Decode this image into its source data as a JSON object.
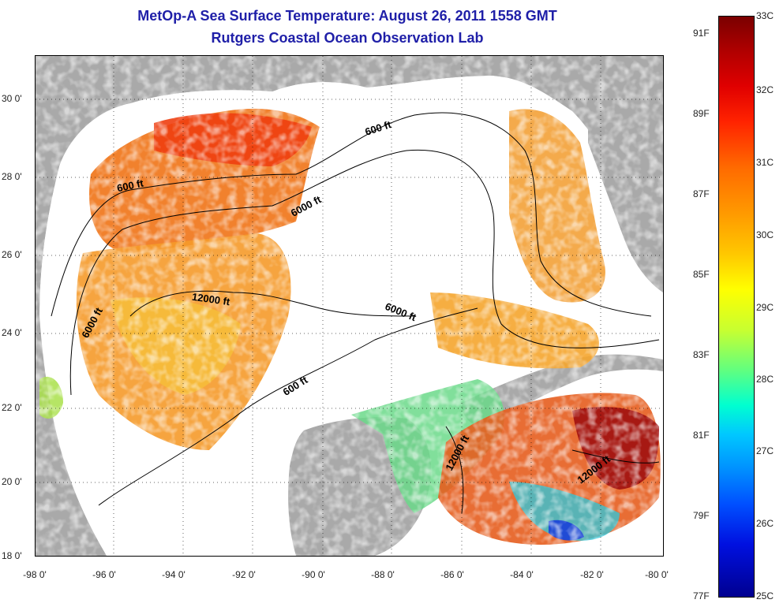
{
  "header": {
    "title": "MetOp-A Sea Surface Temperature:  August 26, 2011 1558 GMT",
    "subtitle": "Rutgers Coastal Ocean Observation Lab"
  },
  "axes": {
    "x_ticks": [
      "-98 0'",
      "-96 0'",
      "-94 0'",
      "-92 0'",
      "-90 0'",
      "-88 0'",
      "-86 0'",
      "-84 0'",
      "-82 0'",
      "-80 0'"
    ],
    "y_ticks": [
      "30 0'",
      "28 0'",
      "26 0'",
      "24 0'",
      "22 0'",
      "20 0'",
      "18 0'"
    ]
  },
  "contours": {
    "labels": [
      "600 ft",
      "600 ft",
      "6000 ft",
      "12000 ft",
      "6000 ft",
      "6000 ft",
      "600 ft",
      "12000 ft",
      "12000 ft"
    ]
  },
  "colorbar": {
    "fahrenheit": [
      "91F",
      "89F",
      "87F",
      "85F",
      "83F",
      "81F",
      "79F",
      "77F"
    ],
    "celsius": [
      "33C",
      "32C",
      "31C",
      "30C",
      "29C",
      "28C",
      "27C",
      "26C",
      "25C"
    ],
    "colors": {
      "land": "#a9a9a9",
      "no_data": "#ffffff",
      "max": "#7a0000",
      "min": "#000090"
    }
  }
}
